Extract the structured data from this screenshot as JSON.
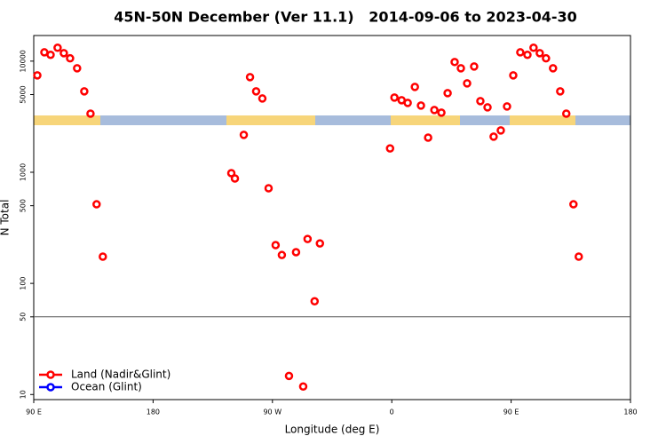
{
  "chart_data": {
    "type": "scatter",
    "title": "45N-50N December (Ver 11.1)   2014-09-06 to 2023-04-30",
    "x_label": "Longitude (deg E)",
    "y_label": "N Total",
    "xlim": [
      90,
      540
    ],
    "xticks": [
      {
        "value": 90,
        "label": "90 E"
      },
      {
        "value": 180,
        "label": "180"
      },
      {
        "value": 270,
        "label": "90 W"
      },
      {
        "value": 360,
        "label": "0"
      },
      {
        "value": 450,
        "label": "90 E"
      },
      {
        "value": 540,
        "label": "180"
      }
    ],
    "ylim": [
      9,
      17000
    ],
    "log_y": true,
    "yticks": [
      10,
      50,
      100,
      500,
      1000,
      5000,
      10000
    ],
    "hline": 50,
    "legend": "bottomleft",
    "series": [
      {
        "name": "Land (Nadir&Glint)",
        "color": "#ff0000",
        "x": [
          92.7,
          98.0,
          102.7,
          108.0,
          112.7,
          117.4,
          122.7,
          128.1,
          132.8,
          137.4,
          142.1,
          239.0,
          241.7,
          248.4,
          253.1,
          257.7,
          262.4,
          267.1,
          272.4,
          277.1,
          282.5,
          287.8,
          293.2,
          296.5,
          301.8,
          305.8,
          358.7,
          362.0,
          367.4,
          372.0,
          377.4,
          382.0,
          387.4,
          392.1,
          397.4,
          402.1,
          407.4,
          412.1,
          416.8,
          422.1,
          426.8,
          432.2,
          436.8,
          442.2,
          446.9,
          451.6,
          456.9,
          462.3,
          466.9,
          471.6,
          476.3,
          481.6,
          487.0,
          491.6,
          497.0,
          501.0
        ],
        "values": [
          7450,
          12000,
          11400,
          13200,
          11800,
          10600,
          8630,
          5350,
          3370,
          515,
          174,
          982,
          879,
          2170,
          7180,
          5350,
          4610,
          718,
          221,
          180,
          14.7,
          191,
          11.8,
          251,
          69,
          229,
          1640,
          4700,
          4450,
          4210,
          5860,
          3980,
          2050,
          3630,
          3440,
          5150,
          9820,
          8630,
          6310,
          8950,
          4370,
          3840,
          2090,
          2380,
          3910,
          7450,
          12000,
          11400,
          13200,
          11800,
          10600,
          8630,
          5350,
          3370,
          515,
          174
        ]
      },
      {
        "name": "Ocean (Glint)",
        "color": "#0000ff",
        "x": [],
        "values": []
      }
    ]
  }
}
